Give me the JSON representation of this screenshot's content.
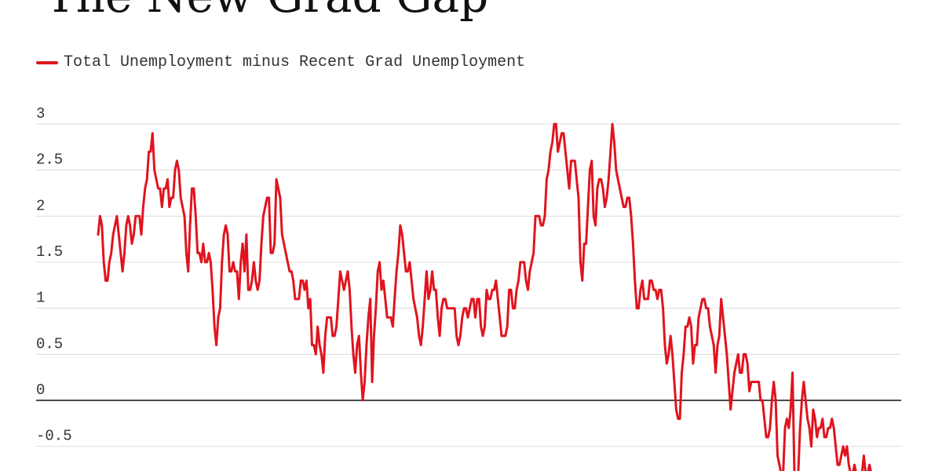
{
  "colors": {
    "series": "#e0141e",
    "grid": "#dcdcdc",
    "zero_line": "#111111",
    "text": "#333333",
    "background": "#ffffff"
  },
  "chart_data": {
    "type": "line",
    "title": "The New Grad Gap",
    "xlabel": "",
    "ylabel": "",
    "ylim": [
      -0.8,
      3
    ],
    "yticks": [
      3,
      2.5,
      2,
      1.5,
      1,
      0.5,
      0,
      -0.5
    ],
    "ytick_labels": [
      "3",
      "2.5",
      "2",
      "1.5",
      "1",
      "0.5",
      "0",
      "-0.5"
    ],
    "grid": true,
    "legend": "top-left",
    "series": [
      {
        "name": "Total Unemployment minus Recent Grad Unemployment",
        "color": "#e0141e",
        "values": [
          1.8,
          2.0,
          1.9,
          1.5,
          1.3,
          1.3,
          1.5,
          1.6,
          1.8,
          1.9,
          2.0,
          1.8,
          1.6,
          1.4,
          1.6,
          1.9,
          2.0,
          1.9,
          1.7,
          1.8,
          2.0,
          2.0,
          2.0,
          1.8,
          2.1,
          2.3,
          2.4,
          2.7,
          2.7,
          2.9,
          2.5,
          2.4,
          2.3,
          2.3,
          2.1,
          2.3,
          2.3,
          2.4,
          2.1,
          2.2,
          2.2,
          2.5,
          2.6,
          2.5,
          2.2,
          2.1,
          2.0,
          1.6,
          1.4,
          1.9,
          2.3,
          2.3,
          2.0,
          1.6,
          1.6,
          1.5,
          1.7,
          1.5,
          1.5,
          1.6,
          1.5,
          1.2,
          0.8,
          0.6,
          0.9,
          1.0,
          1.5,
          1.8,
          1.9,
          1.8,
          1.4,
          1.4,
          1.5,
          1.4,
          1.4,
          1.1,
          1.5,
          1.7,
          1.4,
          1.8,
          1.2,
          1.2,
          1.3,
          1.5,
          1.3,
          1.2,
          1.3,
          1.7,
          2.0,
          2.1,
          2.2,
          2.2,
          1.6,
          1.6,
          1.7,
          2.4,
          2.3,
          2.2,
          1.8,
          1.7,
          1.6,
          1.5,
          1.4,
          1.4,
          1.3,
          1.1,
          1.1,
          1.1,
          1.3,
          1.3,
          1.2,
          1.3,
          1.0,
          1.1,
          0.6,
          0.6,
          0.5,
          0.8,
          0.6,
          0.5,
          0.3,
          0.7,
          0.9,
          0.9,
          0.9,
          0.7,
          0.7,
          0.8,
          1.1,
          1.4,
          1.3,
          1.2,
          1.3,
          1.4,
          1.2,
          0.8,
          0.5,
          0.3,
          0.6,
          0.7,
          0.3,
          0.0,
          0.2,
          0.6,
          0.9,
          1.1,
          0.2,
          0.7,
          1.0,
          1.4,
          1.5,
          1.2,
          1.3,
          1.1,
          0.9,
          0.9,
          0.9,
          0.8,
          1.1,
          1.4,
          1.6,
          1.9,
          1.8,
          1.6,
          1.4,
          1.4,
          1.5,
          1.3,
          1.1,
          1.0,
          0.9,
          0.7,
          0.6,
          0.8,
          1.1,
          1.4,
          1.1,
          1.2,
          1.4,
          1.2,
          1.2,
          0.9,
          0.7,
          1.0,
          1.1,
          1.1,
          1.0,
          1.0,
          1.0,
          1.0,
          1.0,
          0.7,
          0.6,
          0.7,
          0.9,
          1.0,
          1.0,
          0.9,
          1.0,
          1.1,
          1.1,
          0.9,
          1.1,
          1.1,
          0.8,
          0.7,
          0.8,
          1.2,
          1.1,
          1.1,
          1.2,
          1.2,
          1.3,
          1.1,
          0.9,
          0.7,
          0.7,
          0.7,
          0.8,
          1.2,
          1.2,
          1.0,
          1.0,
          1.2,
          1.3,
          1.5,
          1.5,
          1.5,
          1.3,
          1.2,
          1.4,
          1.5,
          1.6,
          2.0,
          2.0,
          2.0,
          1.9,
          1.9,
          2.0,
          2.4,
          2.5,
          2.7,
          2.8,
          3.0,
          3.0,
          2.7,
          2.8,
          2.9,
          2.9,
          2.7,
          2.5,
          2.3,
          2.6,
          2.6,
          2.6,
          2.4,
          2.2,
          1.5,
          1.3,
          1.7,
          1.7,
          2.1,
          2.5,
          2.6,
          2.0,
          1.9,
          2.3,
          2.4,
          2.4,
          2.3,
          2.1,
          2.2,
          2.4,
          2.7,
          3.0,
          2.8,
          2.5,
          2.4,
          2.3,
          2.2,
          2.1,
          2.1,
          2.2,
          2.2,
          2.0,
          1.7,
          1.3,
          1.0,
          1.0,
          1.2,
          1.3,
          1.1,
          1.1,
          1.1,
          1.3,
          1.3,
          1.2,
          1.2,
          1.1,
          1.2,
          1.2,
          1.0,
          0.6,
          0.4,
          0.5,
          0.7,
          0.5,
          0.2,
          -0.1,
          -0.2,
          -0.2,
          0.3,
          0.5,
          0.8,
          0.8,
          0.9,
          0.8,
          0.4,
          0.6,
          0.6,
          0.9,
          1.0,
          1.1,
          1.1,
          1.0,
          1.0,
          0.8,
          0.7,
          0.6,
          0.3,
          0.6,
          0.7,
          1.1,
          0.9,
          0.7,
          0.5,
          0.2,
          -0.1,
          0.1,
          0.3,
          0.4,
          0.5,
          0.3,
          0.3,
          0.5,
          0.5,
          0.4,
          0.1,
          0.2,
          0.2,
          0.2,
          0.2,
          0.2,
          0.0,
          0.0,
          -0.2,
          -0.4,
          -0.4,
          -0.3,
          0.0,
          0.2,
          0.0,
          -0.6,
          -0.7,
          -0.8,
          -0.8,
          -0.3,
          -0.2,
          -0.3,
          -0.1,
          0.3,
          -0.8,
          -0.8,
          -0.8,
          -0.3,
          0.0,
          0.2,
          0.0,
          -0.2,
          -0.3,
          -0.5,
          -0.1,
          -0.2,
          -0.4,
          -0.3,
          -0.3,
          -0.2,
          -0.4,
          -0.4,
          -0.3,
          -0.3,
          -0.2,
          -0.3,
          -0.5,
          -0.7,
          -0.7,
          -0.6,
          -0.5,
          -0.6,
          -0.5,
          -0.7,
          -0.8,
          -0.8,
          -0.7,
          -0.8,
          -0.8,
          -0.8,
          -0.8,
          -0.6,
          -0.8,
          -0.8,
          -0.7,
          -0.8
        ]
      }
    ]
  }
}
